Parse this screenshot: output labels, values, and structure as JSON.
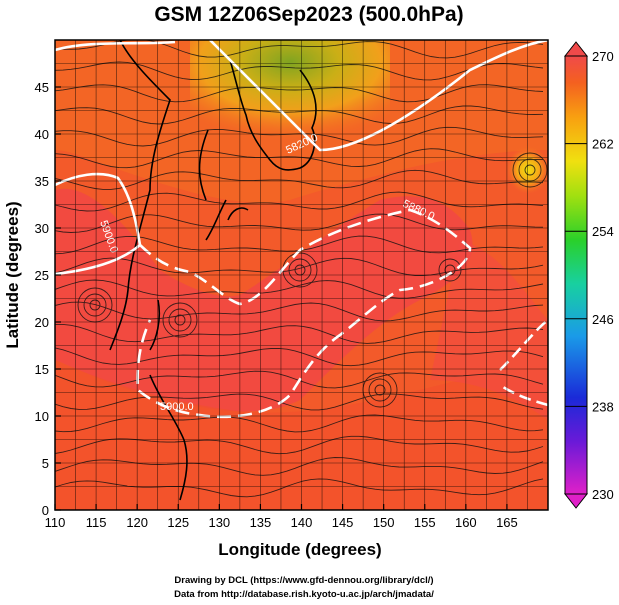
{
  "title": "GSM 12Z06Sep2023 (500.0hPa)",
  "xaxis": {
    "label": "Longitude (degrees)",
    "range": [
      110,
      170
    ],
    "ticks": [
      "110",
      "115",
      "120",
      "125",
      "130",
      "135",
      "140",
      "145",
      "150",
      "155",
      "160",
      "165"
    ]
  },
  "yaxis": {
    "label": "Latitude  (degrees)",
    "range": [
      0,
      50
    ],
    "ticks": [
      "0",
      "5",
      "10",
      "15",
      "20",
      "25",
      "30",
      "35",
      "40",
      "45"
    ]
  },
  "colorbar": {
    "range": [
      230,
      270
    ],
    "ticks": [
      "230",
      "238",
      "246",
      "254",
      "262",
      "270"
    ]
  },
  "contour_labels": [
    "5900.0",
    "5900.0",
    "5880.0",
    "5820.0"
  ],
  "credits": {
    "line1": "Drawing by DCL (https://www.gfd-dennou.org/library/dcl/)",
    "line2": "Data from http://database.rish.kyoto-u.ac.jp/arch/jmadata/"
  },
  "colors": {
    "warm_max": "#f24a3c",
    "warm_mid": "#f56a22",
    "cold_green": "#22cc22",
    "contour": "#ffffff",
    "coastline": "#000000"
  }
}
